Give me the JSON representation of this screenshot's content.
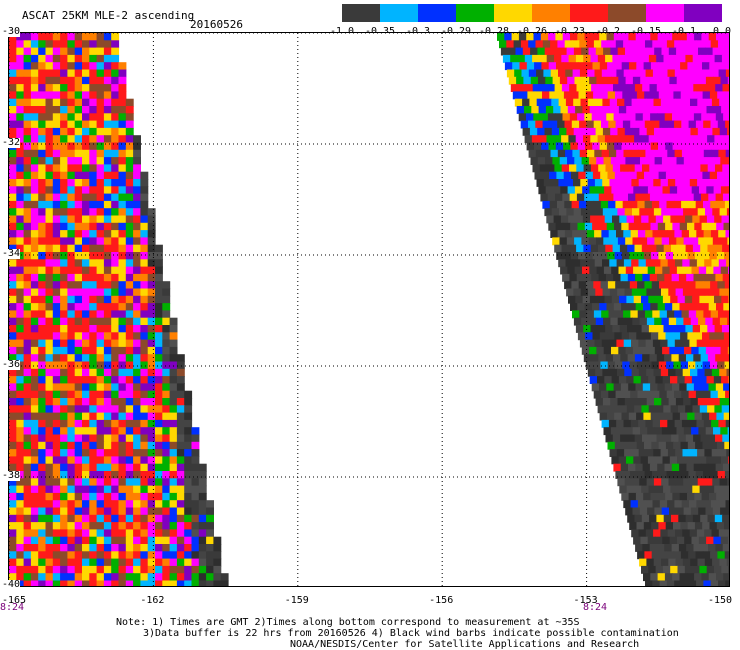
{
  "title": "ASCAT 25KM MLE-2 ascending",
  "date": "20160526",
  "colorbar": {
    "colors": [
      "#3a3a3a",
      "#00b4ff",
      "#0030ff",
      "#00b000",
      "#ffd800",
      "#ff8000",
      "#ff1a1a",
      "#8c4a2a",
      "#ff00ff",
      "#8000c0"
    ],
    "tick_labels": [
      "-1.0",
      "-0.35",
      "-0.3",
      "-0.29",
      "-0.28",
      "-0.26",
      "-0.23",
      "-0.2",
      "-0.15",
      "-0.1",
      "0.0"
    ]
  },
  "chart_data": {
    "type": "heatmap",
    "x_label_values": [
      -165,
      -162,
      -159,
      -156,
      -153,
      -150
    ],
    "x_labels": [
      "-165",
      "-162",
      "-159",
      "-156",
      "-153",
      "-150"
    ],
    "y_label_values": [
      -30,
      -32,
      -34,
      -36,
      -38,
      -40
    ],
    "y_labels": [
      "-30",
      "-32",
      "-34",
      "-36",
      "-38",
      "-40"
    ],
    "xlim": [
      -165,
      -150
    ],
    "ylim": [
      -40,
      -30
    ],
    "grid": true,
    "time_labels": [
      "8:24",
      "8:24"
    ]
  },
  "notes": {
    "line1": "Note: 1) Times are GMT 2)Times along bottom correspond to measurement at ~35S",
    "line2": "3)Data buffer is 22 hrs from 20160526 4) Black wind barbs indicate possible contamination",
    "line3": "NOAA/NESDIS/Center for Satellite Applications and Research"
  }
}
